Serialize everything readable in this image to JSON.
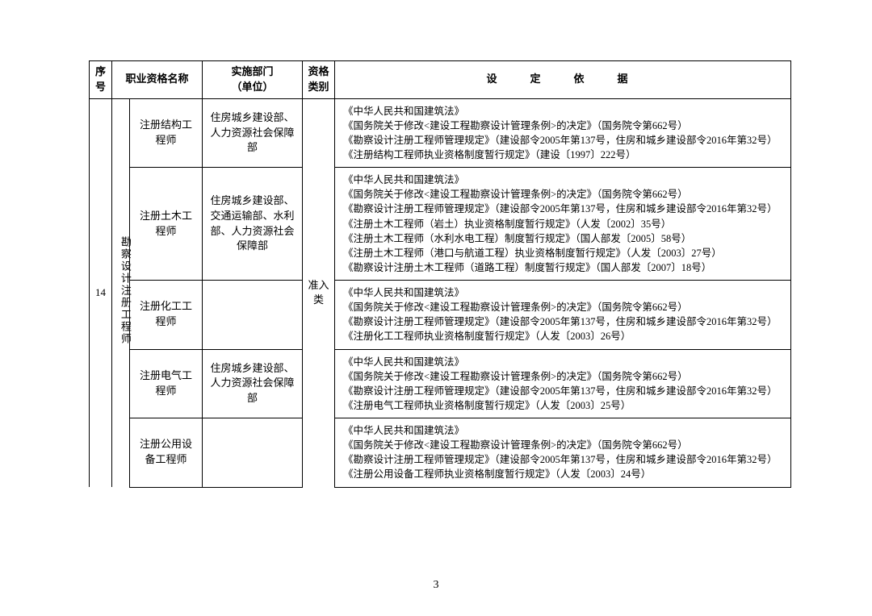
{
  "header": {
    "seq": "序号",
    "name": "职业资格名称",
    "dept": "实施部门\n（单位）",
    "type": "资格\n类别",
    "basis": "设　定　依　据"
  },
  "group": {
    "seq": "14",
    "category": "勘察设计注册工程师",
    "type": "准入类"
  },
  "rows": [
    {
      "name": "注册结构工程师",
      "dept": "住房城乡建设部、人力资源社会保障部",
      "basis": [
        "《中华人民共和国建筑法》",
        "《国务院关于修改<建设工程勘察设计管理条例>的决定》（国务院令第662号）",
        "《勘察设计注册工程师管理规定》（建设部令2005年第137号，住房和城乡建设部令2016年第32号）",
        "《注册结构工程师执业资格制度暂行规定》（建设〔1997〕222号）"
      ]
    },
    {
      "name": "注册土木工程师",
      "dept": "住房城乡建设部、交通运输部、水利部、人力资源社会保障部",
      "basis": [
        "《中华人民共和国建筑法》",
        "《国务院关于修改<建设工程勘察设计管理条例>的决定》（国务院令第662号）",
        "《勘察设计注册工程师管理规定》（建设部令2005年第137号，住房和城乡建设部令2016年第32号）",
        "《注册土木工程师（岩土）执业资格制度暂行规定》（人发〔2002〕35号）",
        "《注册土木工程师（水利水电工程）制度暂行规定》（国人部发〔2005〕58号）",
        "《注册土木工程师（港口与航道工程）执业资格制度暂行规定》（人发〔2003〕27号）",
        "《勘察设计注册土木工程师（道路工程）制度暂行规定》（国人部发〔2007〕18号）"
      ]
    },
    {
      "name": "注册化工工程师",
      "dept": "",
      "basis": [
        "《中华人民共和国建筑法》",
        "《国务院关于修改<建设工程勘察设计管理条例>的决定》（国务院令第662号）",
        "《勘察设计注册工程师管理规定》（建设部令2005年第137号，住房和城乡建设部令2016年第32号）",
        "《注册化工工程师执业资格制度暂行规定》（人发〔2003〕26号）"
      ]
    },
    {
      "name": "注册电气工程师",
      "dept": "住房城乡建设部、人力资源社会保障部",
      "basis": [
        "《中华人民共和国建筑法》",
        "《国务院关于修改<建设工程勘察设计管理条例>的决定》（国务院令第662号）",
        "《勘察设计注册工程师管理规定》（建设部令2005年第137号，住房和城乡建设部令2016年第32号）",
        "《注册电气工程师执业资格制度暂行规定》（人发〔2003〕25号）"
      ]
    },
    {
      "name": "注册公用设备工程师",
      "dept": "",
      "basis": [
        "《中华人民共和国建筑法》",
        "《国务院关于修改<建设工程勘察设计管理条例>的决定》（国务院令第662号）",
        "《勘察设计注册工程师管理规定》（建设部令2005年第137号，住房和城乡建设部令2016年第32号）",
        "《注册公用设备工程师执业资格制度暂行规定》（人发〔2003〕24号）"
      ]
    }
  ],
  "pageNumber": "3"
}
